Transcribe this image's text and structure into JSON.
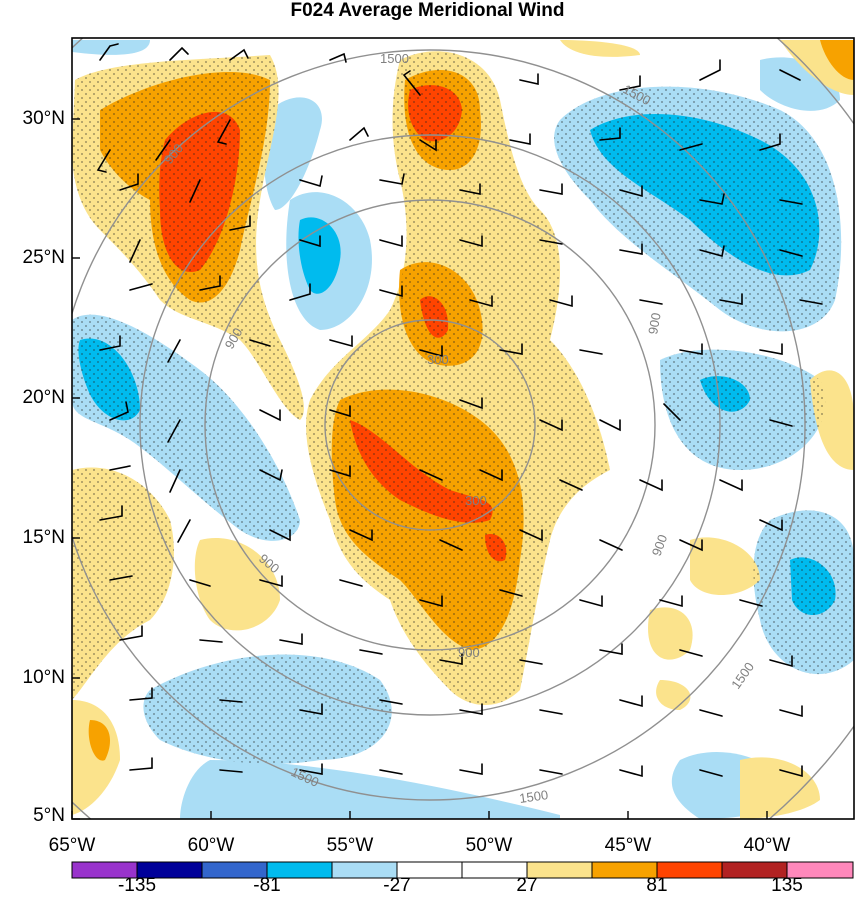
{
  "title": "F024 Average Meridional Wind",
  "latitudes": [
    "30°N",
    "25°N",
    "20°N",
    "15°N",
    "10°N",
    "5°N"
  ],
  "longitudes": [
    "65°W",
    "60°W",
    "55°W",
    "50°W",
    "45°W",
    "40°W"
  ],
  "contour_labels": [
    "1500",
    "1500",
    "900",
    "900",
    "300",
    "300",
    "900",
    "900",
    "1500",
    "900",
    "900",
    "1500",
    "1500"
  ],
  "colorbar": {
    "labels": [
      "-135",
      "-81",
      "-27",
      "27",
      "81",
      "135"
    ],
    "colors": [
      "#9933cc",
      "#000099",
      "#3366cc",
      "#00bbee",
      "#aaddf5",
      "#ffffff",
      "#ffffff",
      "#fbe38c",
      "#f7a200",
      "#ff4400",
      "#b22222",
      "#ff88bb"
    ]
  }
}
